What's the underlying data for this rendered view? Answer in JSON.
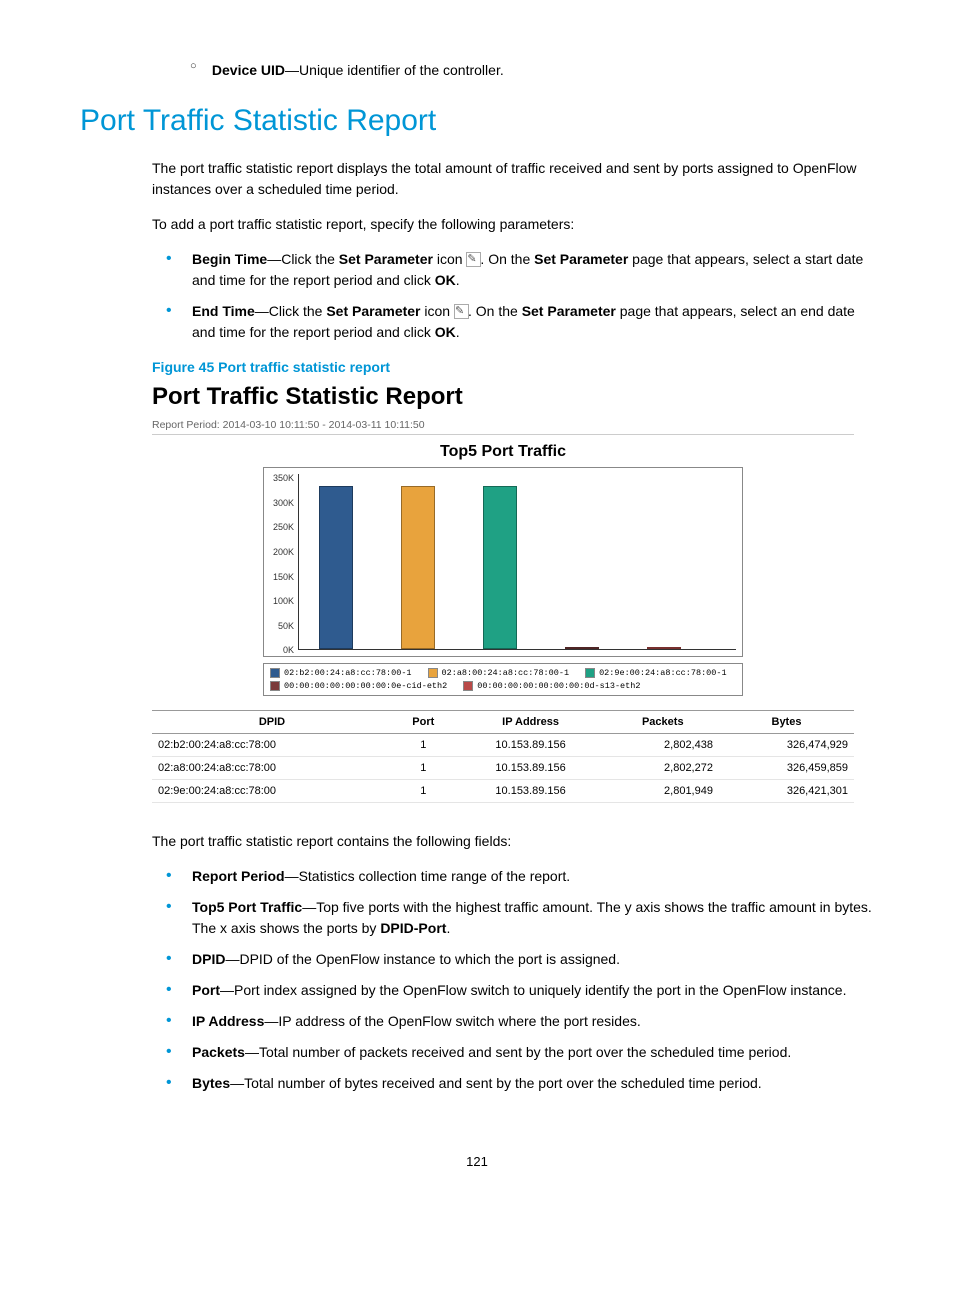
{
  "top_item": {
    "label": "Device UID",
    "desc": "—Unique identifier of the controller."
  },
  "section_title": "Port Traffic Statistic Report",
  "intro": "The port traffic statistic report displays the total amount of traffic received and sent by ports assigned to OpenFlow instances over a scheduled time period.",
  "intro2": "To add a port traffic statistic report, specify the following parameters:",
  "params": [
    {
      "label": "Begin Time",
      "t1": "—Click the ",
      "b1": "Set Parameter",
      "t2": " icon ",
      "t3": ". On the ",
      "b2": "Set Parameter",
      "t4": " page that appears, select a start date and time for the report period and click ",
      "b3": "OK",
      "t5": "."
    },
    {
      "label": "End Time",
      "t1": "—Click the ",
      "b1": "Set Parameter",
      "t2": " icon ",
      "t3": ". On the ",
      "b2": "Set Parameter",
      "t4": " page that appears, select an end date and time for the report period and click ",
      "b3": "OK",
      "t5": "."
    }
  ],
  "figure_caption": "Figure 45 Port traffic statistic report",
  "report": {
    "title": "Port Traffic Statistic Report",
    "period": "Report Period: 2014-03-10 10:11:50  -  2014-03-11 10:11:50",
    "chart": {
      "title": "Top5 Port Traffic",
      "ymax": 350,
      "yticks": [
        "350K",
        "300K",
        "250K",
        "200K",
        "150K",
        "100K",
        "50K",
        "0K"
      ],
      "bars": [
        {
          "label": "02:b2:00:24:a8:cc:78:00-1",
          "value": 326,
          "color": "#2f5b8f"
        },
        {
          "label": "02:a8:00:24:a8:cc:78:00-1",
          "value": 326,
          "color": "#e8a33d"
        },
        {
          "label": "02:9e:00:24:a8:cc:78:00-1",
          "value": 326,
          "color": "#1fa184"
        },
        {
          "label": "00:00:00:00:00:00:00:0e-cid-eth2",
          "value": 2,
          "color": "#7a3a3a"
        },
        {
          "label": "00:00:00:00:00:00:00:0d-s13-eth2",
          "value": 2,
          "color": "#b94a48"
        }
      ]
    },
    "table": {
      "columns": [
        "DPID",
        "Port",
        "IP  Address",
        "Packets",
        "Bytes"
      ],
      "rows": [
        [
          "02:b2:00:24:a8:cc:78:00",
          "1",
          "10.153.89.156",
          "2,802,438",
          "326,474,929"
        ],
        [
          "02:a8:00:24:a8:cc:78:00",
          "1",
          "10.153.89.156",
          "2,802,272",
          "326,459,859"
        ],
        [
          "02:9e:00:24:a8:cc:78:00",
          "1",
          "10.153.89.156",
          "2,801,949",
          "326,421,301"
        ]
      ]
    }
  },
  "fields_intro": "The port traffic statistic report contains the following fields:",
  "fields": [
    {
      "label": "Report Period",
      "desc": "—Statistics collection time range of the report."
    },
    {
      "label": "Top5 Port Traffic",
      "desc": "—Top five ports with the highest traffic amount. The y axis shows the traffic amount in bytes. The x axis shows the ports by ",
      "b": "DPID-Port",
      "desc2": "."
    },
    {
      "label": "DPID",
      "desc": "—DPID of the OpenFlow instance to which the port is assigned."
    },
    {
      "label": "Port",
      "desc": "—Port index assigned by the OpenFlow switch to uniquely identify the port in the OpenFlow instance."
    },
    {
      "label": "IP Address",
      "desc": "—IP address of the OpenFlow switch where the port resides."
    },
    {
      "label": "Packets",
      "desc": "—Total number of packets received and sent by the port over the scheduled time period."
    },
    {
      "label": "Bytes",
      "desc": "—Total number of bytes received and sent by the port over the scheduled time period."
    }
  ],
  "page_number": "121"
}
